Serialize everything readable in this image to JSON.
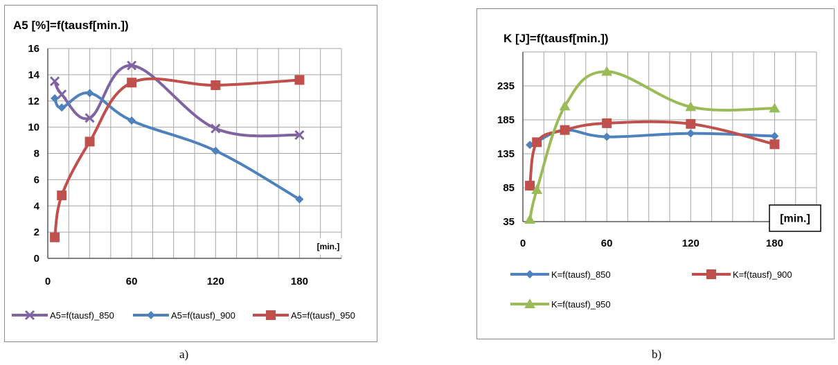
{
  "captions": {
    "a": "a)",
    "b": "b)"
  },
  "chart_data": [
    {
      "type": "line",
      "title": "A5 [%]=f(tausf[min.])",
      "xlabel": "",
      "ylabel": "",
      "xlim": [
        0,
        210
      ],
      "ylim": [
        0,
        16
      ],
      "x_ticks": [
        0,
        60,
        120,
        180
      ],
      "y_ticks": [
        0,
        2,
        4,
        6,
        8,
        10,
        12,
        14,
        16
      ],
      "grid": true,
      "axis_unit_label": "[min.]",
      "legend_position": "bottom",
      "series": [
        {
          "name": "A5=f(tausf)_850",
          "color": "#8064a2",
          "marker": "x",
          "x": [
            5,
            10,
            30,
            60,
            120,
            180
          ],
          "y": [
            13.5,
            12.5,
            10.7,
            14.7,
            9.9,
            9.4
          ]
        },
        {
          "name": "A5=f(tausf)_900",
          "color": "#4f81bd",
          "marker": "diamond",
          "x": [
            5,
            10,
            30,
            60,
            120,
            180
          ],
          "y": [
            12.2,
            11.5,
            12.6,
            10.5,
            8.2,
            4.5
          ]
        },
        {
          "name": "A5=f(tausf)_950",
          "color": "#c0504d",
          "marker": "square",
          "x": [
            5,
            10,
            30,
            60,
            120,
            180
          ],
          "y": [
            1.6,
            4.8,
            8.9,
            13.4,
            13.2,
            13.6
          ]
        }
      ]
    },
    {
      "type": "line",
      "title": "K [J]=f(tausf[min.])",
      "xlabel": "",
      "ylabel": "",
      "xlim": [
        0,
        210
      ],
      "ylim": [
        35,
        285
      ],
      "x_ticks": [
        0,
        60,
        120,
        180
      ],
      "y_ticks": [
        35,
        85,
        135,
        185,
        235
      ],
      "grid": true,
      "axis_unit_label": "[min.]",
      "legend_position": "bottom",
      "series": [
        {
          "name": "K=f(tausf)_850",
          "color": "#4f81bd",
          "marker": "diamond",
          "x": [
            5,
            10,
            30,
            60,
            120,
            180
          ],
          "y": [
            148,
            153,
            170,
            160,
            165,
            161
          ]
        },
        {
          "name": "K=f(tausf)_900",
          "color": "#c0504d",
          "marker": "square",
          "x": [
            5,
            10,
            30,
            60,
            120,
            180
          ],
          "y": [
            88,
            152,
            170,
            180,
            179,
            149
          ]
        },
        {
          "name": "K=f(tausf)_950",
          "color": "#9bbb59",
          "marker": "triangle",
          "x": [
            5,
            10,
            30,
            60,
            120,
            180
          ],
          "y": [
            38,
            82,
            205,
            256,
            204,
            202
          ]
        }
      ]
    }
  ]
}
